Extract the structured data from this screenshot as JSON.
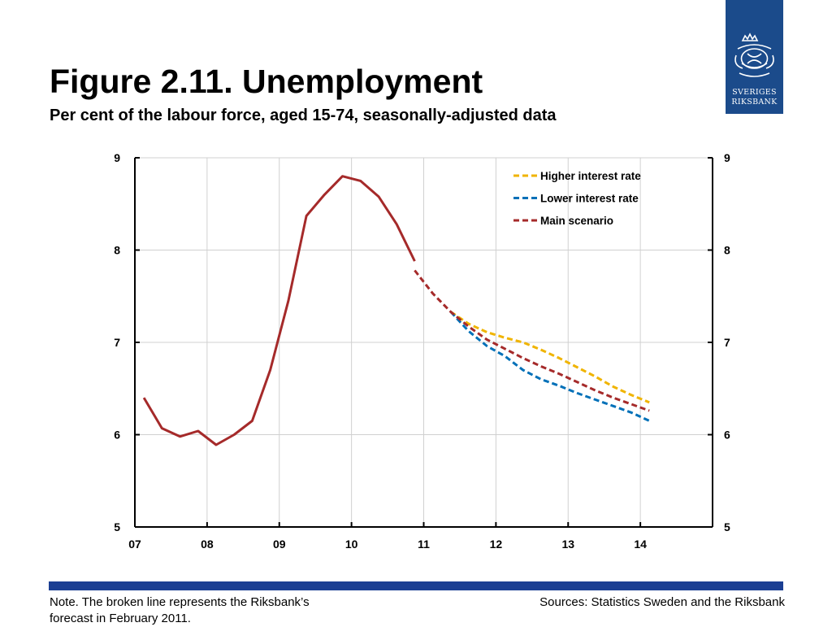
{
  "logo": {
    "name": "Sveriges Riksbank",
    "line1": "SVERIGES",
    "line2": "RIKSBANK"
  },
  "figure": {
    "title": "Figure 2.11. Unemployment",
    "subtitle": "Per cent of the labour force, aged 15-74, seasonally-adjusted data"
  },
  "footer": {
    "note": "Note. The broken line represents the Riksbank’s forecast in February 2011.",
    "sources": "Sources: Statistics Sweden and the Riksbank",
    "bar_color": "#1b3f93"
  },
  "chart_data": {
    "type": "line",
    "title": "",
    "xlabel": "",
    "ylabel": "",
    "xlim": [
      2007.0,
      2015.0
    ],
    "ylim": [
      5,
      9
    ],
    "y_ticks": [
      5,
      6,
      7,
      8,
      9
    ],
    "x_ticks": [
      {
        "value": 2007,
        "label": "07"
      },
      {
        "value": 2008,
        "label": "08"
      },
      {
        "value": 2009,
        "label": "09"
      },
      {
        "value": 2010,
        "label": "10"
      },
      {
        "value": 2011,
        "label": "11"
      },
      {
        "value": 2012,
        "label": "12"
      },
      {
        "value": 2013,
        "label": "13"
      },
      {
        "value": 2014,
        "label": "14"
      }
    ],
    "grid": true,
    "right_axis": true,
    "legend_placement": "top-right",
    "series": [
      {
        "key": "outcome",
        "style": "solid",
        "color": "#a52a2a",
        "x": [
          2007.125,
          2007.375,
          2007.625,
          2007.875,
          2008.125,
          2008.375,
          2008.625,
          2008.875,
          2009.125,
          2009.375,
          2009.625,
          2009.875,
          2010.125,
          2010.375,
          2010.625,
          2010.875
        ],
        "y": [
          6.4,
          6.07,
          5.98,
          6.04,
          5.89,
          6.0,
          6.15,
          6.7,
          7.45,
          8.37,
          8.6,
          8.8,
          8.75,
          8.58,
          8.28,
          7.88
        ]
      },
      {
        "key": "higher",
        "name": "Higher interest rate",
        "style": "dashed",
        "color": "#f0b400",
        "x": [
          2011.375,
          2011.625,
          2011.875,
          2012.125,
          2012.375,
          2012.625,
          2012.875,
          2013.125,
          2013.375,
          2013.625,
          2013.875,
          2014.125
        ],
        "y": [
          7.33,
          7.2,
          7.11,
          7.05,
          7.0,
          6.92,
          6.83,
          6.73,
          6.63,
          6.52,
          6.43,
          6.35
        ]
      },
      {
        "key": "lower",
        "name": "Lower interest rate",
        "style": "dashed",
        "color": "#0070b8",
        "x": [
          2011.375,
          2011.625,
          2011.875,
          2012.125,
          2012.375,
          2012.625,
          2012.875,
          2013.125,
          2013.375,
          2013.625,
          2013.875,
          2014.125
        ],
        "y": [
          7.33,
          7.12,
          6.96,
          6.85,
          6.7,
          6.6,
          6.53,
          6.45,
          6.38,
          6.31,
          6.24,
          6.15
        ]
      },
      {
        "key": "main",
        "name": "Main scenario",
        "style": "dashed",
        "color": "#a52a2a",
        "x": [
          2010.875,
          2011.125,
          2011.375,
          2011.625,
          2011.875,
          2012.125,
          2012.375,
          2012.625,
          2012.875,
          2013.125,
          2013.375,
          2013.625,
          2013.875,
          2014.125
        ],
        "y": [
          7.78,
          7.53,
          7.33,
          7.17,
          7.03,
          6.93,
          6.83,
          6.74,
          6.66,
          6.57,
          6.48,
          6.4,
          6.33,
          6.26
        ]
      }
    ],
    "legend": [
      {
        "series": "higher",
        "label": "Higher interest rate",
        "color": "#f0b400"
      },
      {
        "series": "lower",
        "label": "Lower interest rate",
        "color": "#0070b8"
      },
      {
        "series": "main",
        "label": "Main scenario",
        "color": "#a52a2a"
      }
    ]
  }
}
